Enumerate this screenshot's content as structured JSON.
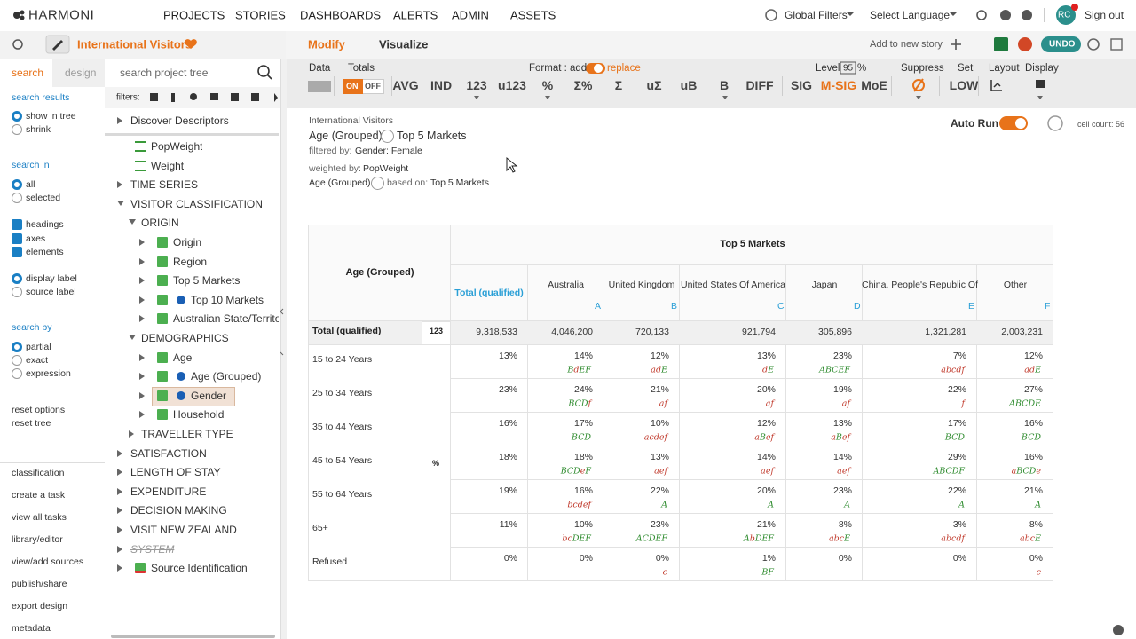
{
  "nav": {
    "logo": "HARMONI",
    "menu": [
      "PROJECTS",
      "STORIES",
      "DASHBOARDS",
      "ALERTS",
      "ADMIN",
      "ASSETS"
    ],
    "global_filters": "Global Filters",
    "language": "Select Language",
    "avatar": "RC",
    "sign_out": "Sign out"
  },
  "project": {
    "name": "International Visitors",
    "tabs": [
      "Modify",
      "Visualize"
    ],
    "add_to_story": "Add to new story",
    "undo": "UNDO"
  },
  "sidebar": {
    "tabs": [
      "search",
      "design"
    ],
    "search_placeholder": "search project tree",
    "filters_label": "filters:",
    "search_results": {
      "heading": "search results",
      "options": [
        {
          "label": "show in tree",
          "checked": true
        },
        {
          "label": "shrink",
          "checked": false
        }
      ]
    },
    "search_in": {
      "heading": "search in",
      "scope": [
        {
          "label": "all",
          "checked": true
        },
        {
          "label": "selected",
          "checked": false
        }
      ],
      "types": [
        {
          "label": "headings",
          "checked": true
        },
        {
          "label": "axes",
          "checked": true
        },
        {
          "label": "elements",
          "checked": true
        }
      ],
      "labels": [
        {
          "label": "display label",
          "checked": true
        },
        {
          "label": "source label",
          "checked": false
        }
      ]
    },
    "search_by": {
      "heading": "search by",
      "options": [
        {
          "label": "partial",
          "checked": true
        },
        {
          "label": "exact",
          "checked": false
        },
        {
          "label": "expression",
          "checked": false
        }
      ]
    },
    "resets": [
      "reset options",
      "reset tree"
    ],
    "actions": [
      "classification",
      "create a task",
      "view all tasks",
      "library/editor",
      "view/add sources",
      "publish/share",
      "export design",
      "metadata"
    ]
  },
  "tree": [
    {
      "label": "Discover Descriptors",
      "level": 0,
      "kind": "folder",
      "open": false
    },
    {
      "label": "PopWeight",
      "level": 1,
      "kind": "weight"
    },
    {
      "label": "Weight",
      "level": 1,
      "kind": "weight"
    },
    {
      "label": "TIME SERIES",
      "level": 0,
      "kind": "folder",
      "open": false
    },
    {
      "label": "VISITOR CLASSIFICATION",
      "level": 0,
      "kind": "folder",
      "open": true
    },
    {
      "label": "ORIGIN",
      "level": 1,
      "kind": "folder",
      "open": true
    },
    {
      "label": "Origin",
      "level": 2,
      "kind": "var"
    },
    {
      "label": "Region",
      "level": 2,
      "kind": "var"
    },
    {
      "label": "Top 5 Markets",
      "level": 2,
      "kind": "var"
    },
    {
      "label": "Top 10 Markets",
      "level": 2,
      "kind": "var",
      "info": true
    },
    {
      "label": "Australian State/Territo",
      "level": 2,
      "kind": "var"
    },
    {
      "label": "DEMOGRAPHICS",
      "level": 1,
      "kind": "folder",
      "open": true
    },
    {
      "label": "Age",
      "level": 2,
      "kind": "var"
    },
    {
      "label": "Age (Grouped)",
      "level": 2,
      "kind": "var",
      "info": true
    },
    {
      "label": "Gender",
      "level": 2,
      "kind": "var",
      "info": true,
      "selected": true
    },
    {
      "label": "Household",
      "level": 2,
      "kind": "var"
    },
    {
      "label": "TRAVELLER TYPE",
      "level": 1,
      "kind": "folder",
      "open": false
    },
    {
      "label": "SATISFACTION",
      "level": 0,
      "kind": "folder",
      "open": false
    },
    {
      "label": "LENGTH OF STAY",
      "level": 0,
      "kind": "folder",
      "open": false
    },
    {
      "label": "EXPENDITURE",
      "level": 0,
      "kind": "folder",
      "open": false
    },
    {
      "label": "DECISION MAKING",
      "level": 0,
      "kind": "folder",
      "open": false
    },
    {
      "label": "VISIT NEW ZEALAND",
      "level": 0,
      "kind": "folder",
      "open": false
    },
    {
      "label": "SYSTEM",
      "level": 0,
      "kind": "folder",
      "open": false,
      "system": true
    },
    {
      "label": "Source Identification",
      "level": 0,
      "kind": "var"
    }
  ],
  "toolbar": {
    "labels": {
      "data": "Data",
      "totals": "Totals",
      "format": "Format : add",
      "replace": "replace",
      "level": "Level",
      "level_value": "95",
      "level_unit": "%",
      "suppress": "Suppress",
      "set": "Set",
      "layout": "Layout",
      "display": "Display"
    },
    "totals_toggle": [
      "ON",
      "OFF"
    ],
    "buttons": [
      "AVG",
      "IND",
      "123",
      "u123",
      "%",
      "Σ%",
      "Σ",
      "uΣ",
      "uB",
      "B",
      "DIFF",
      "SIG",
      "M-SIG",
      "MoE"
    ],
    "set_value": "LOW"
  },
  "report": {
    "project": "International Visitors",
    "row_var": "Age (Grouped)",
    "col_var": "Top 5 Markets",
    "filter_label": "filtered by:",
    "filter": "Gender: Female",
    "weight_label": "weighted by:",
    "weight": "PopWeight",
    "base_var": "Age (Grouped)",
    "base_label": "based on:",
    "base": "Top 5 Markets",
    "auto_run": "Auto Run",
    "cell_count": "cell count: 56"
  },
  "table": {
    "row_header": "Age (Grouped)",
    "col_header": "Top 5 Markets",
    "total_column": "Total (qualified)",
    "columns": [
      {
        "name": "Australia",
        "letter": "A"
      },
      {
        "name": "United Kingdom",
        "letter": "B"
      },
      {
        "name": "United States Of America",
        "letter": "C"
      },
      {
        "name": "Japan",
        "letter": "D"
      },
      {
        "name": "China, People's Republic Of",
        "letter": "E"
      },
      {
        "name": "Other",
        "letter": "F"
      }
    ],
    "total_row": {
      "label": "Total (qualified)",
      "stat": "123",
      "total": "9,318,533",
      "values": [
        "4,046,200",
        "720,133",
        "921,794",
        "305,896",
        "1,321,281",
        "2,003,231"
      ]
    },
    "stat": "%",
    "rows": [
      {
        "label": "15 to 24 Years",
        "total": "13%",
        "values": [
          "14%",
          "12%",
          "13%",
          "23%",
          "7%",
          "12%"
        ],
        "sig": [
          "BdEF",
          "adE",
          "dE",
          "ABCEF",
          "abcdf",
          "adE"
        ]
      },
      {
        "label": "25 to 34 Years",
        "total": "23%",
        "values": [
          "24%",
          "21%",
          "20%",
          "19%",
          "22%",
          "27%"
        ],
        "sig": [
          "BCDf",
          "af",
          "af",
          "af",
          "f",
          "ABCDE"
        ]
      },
      {
        "label": "35 to 44 Years",
        "total": "16%",
        "values": [
          "17%",
          "10%",
          "12%",
          "13%",
          "17%",
          "16%"
        ],
        "sig": [
          "BCD",
          "acdef",
          "aBef",
          "aBef",
          "BCD",
          "BCD"
        ]
      },
      {
        "label": "45 to 54 Years",
        "total": "18%",
        "values": [
          "18%",
          "13%",
          "14%",
          "14%",
          "29%",
          "16%"
        ],
        "sig": [
          "BCDeF",
          "aef",
          "aef",
          "aef",
          "ABCDF",
          "aBCDe"
        ]
      },
      {
        "label": "55 to 64 Years",
        "total": "19%",
        "values": [
          "16%",
          "22%",
          "20%",
          "23%",
          "22%",
          "21%"
        ],
        "sig": [
          "bcdef",
          "A",
          "A",
          "A",
          "A",
          "A"
        ]
      },
      {
        "label": "65+",
        "total": "11%",
        "values": [
          "10%",
          "23%",
          "21%",
          "8%",
          "3%",
          "8%"
        ],
        "sig": [
          "bcDEF",
          "ACDEF",
          "AbDEF",
          "abcE",
          "abcdf",
          "abcE"
        ]
      },
      {
        "label": "Refused",
        "total": "0%",
        "values": [
          "0%",
          "0%",
          "1%",
          "0%",
          "0%",
          "0%"
        ],
        "sig": [
          null,
          "c",
          "BF",
          null,
          null,
          "c"
        ]
      }
    ]
  }
}
